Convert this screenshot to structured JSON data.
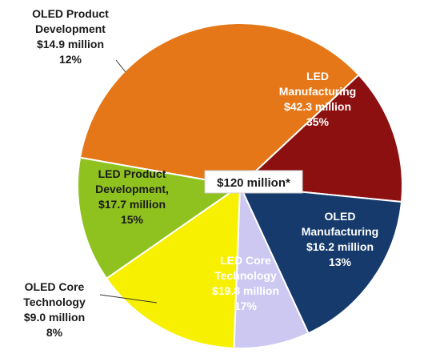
{
  "chart_data": {
    "type": "pie",
    "total_label": "$120 million*",
    "slices": [
      {
        "lines": [
          "LED",
          "Manufacturing",
          "$42.3 million",
          "35%"
        ],
        "value": 42.3,
        "percent": 35,
        "color": "#e57718",
        "text_color": "#ffffff"
      },
      {
        "lines": [
          "OLED",
          "Manufacturing",
          "$16.2 million",
          "13%"
        ],
        "value": 16.2,
        "percent": 13,
        "color": "#8c1010",
        "text_color": "#ffffff"
      },
      {
        "lines": [
          "LED Core",
          "Technology",
          "$19.8 million",
          "17%"
        ],
        "value": 19.8,
        "percent": 17,
        "color": "#153a6b",
        "text_color": "#ffffff"
      },
      {
        "lines": [
          "OLED Core",
          "Technology",
          "$9.0 million",
          "8%"
        ],
        "value": 9.0,
        "percent": 8,
        "color": "#ccc8f2",
        "text_color": "#1a1a1a"
      },
      {
        "lines": [
          "LED Product",
          "Development,",
          "$17.7 million",
          "15%"
        ],
        "value": 17.7,
        "percent": 15,
        "color": "#f7f000",
        "text_color": "#1a1a1a"
      },
      {
        "lines": [
          "OLED Product",
          "Development",
          "$14.9 million",
          "12%"
        ],
        "value": 14.9,
        "percent": 12,
        "color": "#8fc21e",
        "text_color": "#1a1a1a"
      }
    ]
  }
}
